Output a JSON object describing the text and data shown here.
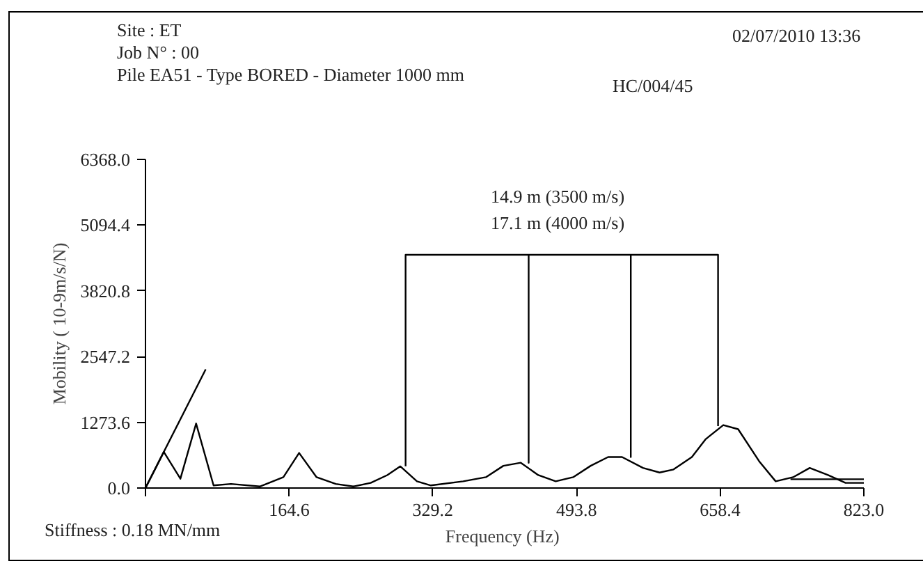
{
  "chart_data": {
    "type": "line",
    "xlabel": "Frequency  (Hz)",
    "ylabel": "Mobility ( 10-9m/s/N)",
    "annotations": [
      "Site : ET",
      "Job N° : 00",
      "Pile EA51 - Type BORED - Diameter 1000 mm",
      "HC/004/45",
      "02/07/2010  13:36",
      "14.9 m (3500 m/s)",
      "17.1 m (4000 m/s)",
      "Stiffness : 0.18 MN/mm"
    ],
    "xlim": [
      0,
      823
    ],
    "ylim": [
      0,
      6368
    ],
    "xticks": [
      {
        "value": 0,
        "label": null
      },
      {
        "value": 164.6,
        "label": "164.6"
      },
      {
        "value": 329.2,
        "label": "329.2"
      },
      {
        "value": 493.8,
        "label": "493.8"
      },
      {
        "value": 658.4,
        "label": "658.4"
      },
      {
        "value": 823,
        "label": "823.0"
      }
    ],
    "yticks": [
      {
        "value": 0,
        "label": "0.0"
      },
      {
        "value": 1273.6,
        "label": "1273.6"
      },
      {
        "value": 2547.2,
        "label": "2547.2"
      },
      {
        "value": 3820.8,
        "label": "3820.8"
      },
      {
        "value": 5094.4,
        "label": "5094.4"
      },
      {
        "value": 6368,
        "label": "6368.0"
      }
    ],
    "series": [
      {
        "color": "#000000",
        "x": [
          0,
          21,
          40,
          58,
          78,
          98,
          131,
          158,
          176,
          196,
          218,
          238,
          258,
          277,
          292,
          311,
          327,
          364,
          390,
          410,
          430,
          450,
          470,
          490,
          510,
          530,
          546,
          570,
          589,
          605,
          626,
          642,
          662,
          679,
          703,
          722,
          742,
          761,
          782,
          802,
          823
        ],
        "values": [
          0,
          700,
          180,
          1250,
          50,
          80,
          30,
          210,
          680,
          210,
          80,
          30,
          100,
          250,
          420,
          130,
          50,
          130,
          210,
          430,
          490,
          250,
          130,
          210,
          430,
          600,
          600,
          390,
          300,
          360,
          600,
          950,
          1220,
          1140,
          520,
          130,
          210,
          390,
          250,
          100,
          100
        ]
      },
      {
        "color": "#000000",
        "x": [
          0,
          69
        ],
        "values": [
          0,
          2300
        ]
      },
      {
        "color": "#000000",
        "x": [
          739,
          823
        ],
        "values": [
          170,
          170
        ]
      },
      {
        "color": "#000000",
        "x": [
          298,
          298,
          439,
          439,
          439,
          556,
          556,
          556,
          656,
          656
        ],
        "values": [
          420,
          4520,
          4520,
          490,
          4520,
          4520,
          600,
          4520,
          4520,
          1200
        ]
      }
    ],
    "grid": false,
    "marker": "none",
    "line_style": "solid"
  }
}
